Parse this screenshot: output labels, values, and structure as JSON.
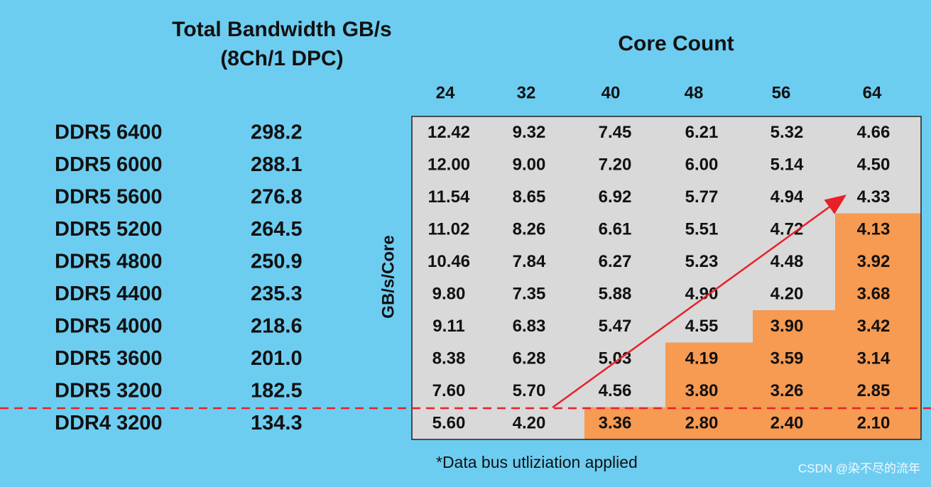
{
  "title": "Total Bandwidth GB/s",
  "subtitle": "(8Ch/1 DPC)",
  "column_group_title": "Core Count",
  "row_axis_title": "GB/s/Core",
  "columns": [
    "24",
    "32",
    "40",
    "48",
    "56",
    "64"
  ],
  "rows": [
    {
      "memory": "DDR5 6400",
      "bandwidth": "298.2",
      "per_core": [
        "12.42",
        "9.32",
        "7.45",
        "6.21",
        "5.32",
        "4.66"
      ],
      "cell_colors": [
        "#d9d9d9",
        "#d9d9d9",
        "#d9d9d9",
        "#d9d9d9",
        "#d9d9d9",
        "#d9d9d9"
      ]
    },
    {
      "memory": "DDR5 6000",
      "bandwidth": "288.1",
      "per_core": [
        "12.00",
        "9.00",
        "7.20",
        "6.00",
        "5.14",
        "4.50"
      ],
      "cell_colors": [
        "#d9d9d9",
        "#d9d9d9",
        "#d9d9d9",
        "#d9d9d9",
        "#d9d9d9",
        "#d9d9d9"
      ]
    },
    {
      "memory": "DDR5 5600",
      "bandwidth": "276.8",
      "per_core": [
        "11.54",
        "8.65",
        "6.92",
        "5.77",
        "4.94",
        "4.33"
      ],
      "cell_colors": [
        "#d9d9d9",
        "#d9d9d9",
        "#d9d9d9",
        "#d9d9d9",
        "#d9d9d9",
        "#d9d9d9"
      ]
    },
    {
      "memory": "DDR5 5200",
      "bandwidth": "264.5",
      "per_core": [
        "11.02",
        "8.26",
        "6.61",
        "5.51",
        "4.72",
        "4.13"
      ],
      "cell_colors": [
        "#d9d9d9",
        "#d9d9d9",
        "#d9d9d9",
        "#d9d9d9",
        "#d9d9d9",
        "#f79a52"
      ]
    },
    {
      "memory": "DDR5 4800",
      "bandwidth": "250.9",
      "per_core": [
        "10.46",
        "7.84",
        "6.27",
        "5.23",
        "4.48",
        "3.92"
      ],
      "cell_colors": [
        "#d9d9d9",
        "#d9d9d9",
        "#d9d9d9",
        "#d9d9d9",
        "#d9d9d9",
        "#f79a52"
      ]
    },
    {
      "memory": "DDR5 4400",
      "bandwidth": "235.3",
      "per_core": [
        "9.80",
        "7.35",
        "5.88",
        "4.90",
        "4.20",
        "3.68"
      ],
      "cell_colors": [
        "#d9d9d9",
        "#d9d9d9",
        "#d9d9d9",
        "#d9d9d9",
        "#d9d9d9",
        "#f79a52"
      ]
    },
    {
      "memory": "DDR5 4000",
      "bandwidth": "218.6",
      "per_core": [
        "9.11",
        "6.83",
        "5.47",
        "4.55",
        "3.90",
        "3.42"
      ],
      "cell_colors": [
        "#d9d9d9",
        "#d9d9d9",
        "#d9d9d9",
        "#d9d9d9",
        "#f79a52",
        "#f79a52"
      ]
    },
    {
      "memory": "DDR5 3600",
      "bandwidth": "201.0",
      "per_core": [
        "8.38",
        "6.28",
        "5.03",
        "4.19",
        "3.59",
        "3.14"
      ],
      "cell_colors": [
        "#d9d9d9",
        "#d9d9d9",
        "#d9d9d9",
        "#f79a52",
        "#f79a52",
        "#f79a52"
      ]
    },
    {
      "memory": "DDR5 3200",
      "bandwidth": "182.5",
      "per_core": [
        "7.60",
        "5.70",
        "4.56",
        "3.80",
        "3.26",
        "2.85"
      ],
      "cell_colors": [
        "#d9d9d9",
        "#d9d9d9",
        "#d9d9d9",
        "#f79a52",
        "#f79a52",
        "#f79a52"
      ]
    },
    {
      "memory": "DDR4 3200",
      "bandwidth": "134.3",
      "per_core": [
        "5.60",
        "4.20",
        "3.36",
        "2.80",
        "2.40",
        "2.10"
      ],
      "cell_colors": [
        "#d9d9d9",
        "#d9d9d9",
        "#f79a52",
        "#f79a52",
        "#f79a52",
        "#f79a52"
      ]
    }
  ],
  "footnote": "*Data bus utliziation applied",
  "watermark": "CSDN @染不尽的流年"
}
